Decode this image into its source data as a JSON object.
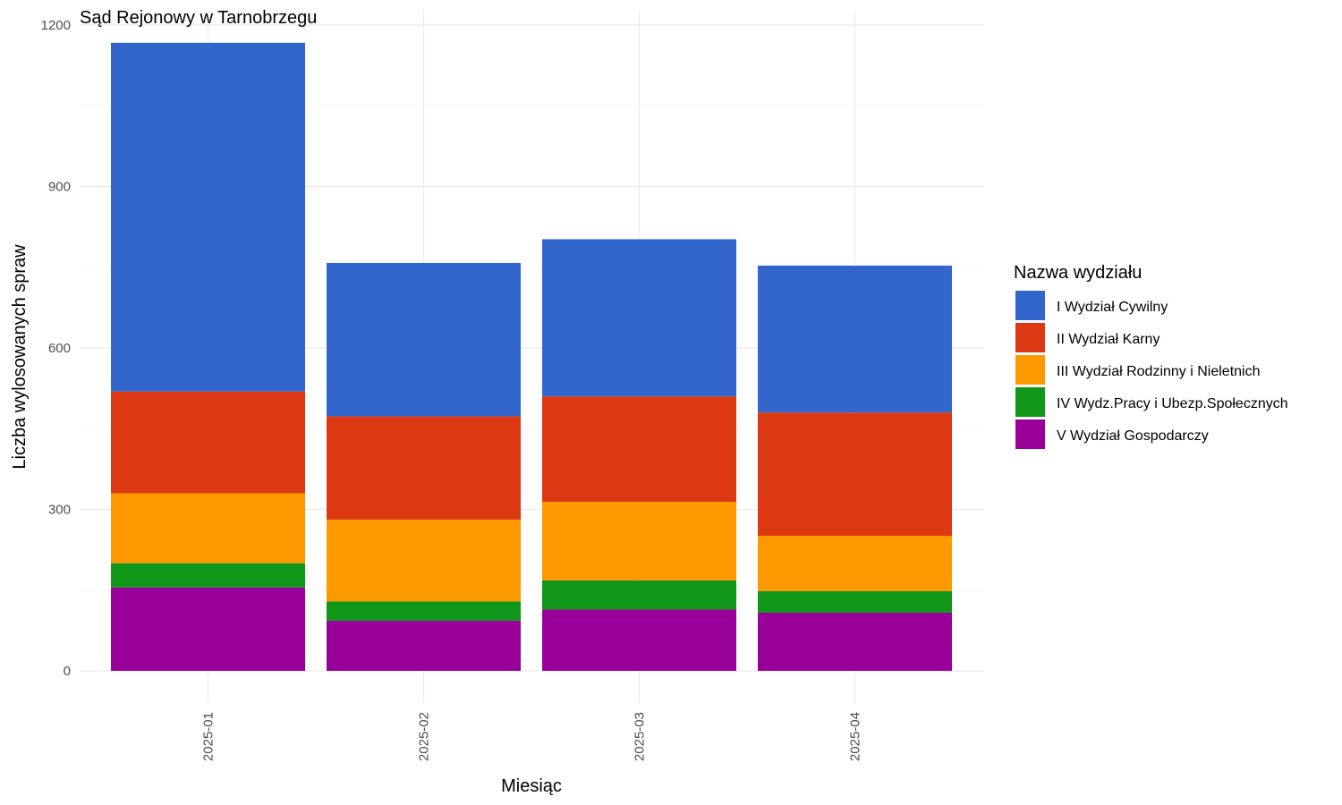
{
  "chart_data": {
    "type": "bar",
    "stacked": true,
    "title": "Sąd Rejonowy w Tarnobrzegu",
    "xlabel": "Miesiąc",
    "ylabel": "Liczba wylosowanych spraw",
    "ylim": [
      0,
      1200
    ],
    "yticks": [
      0,
      300,
      600,
      900,
      1200
    ],
    "grid": true,
    "legend_position": "right",
    "legend_title": "Nazwa wydziału",
    "categories": [
      "2025-01",
      "2025-02",
      "2025-03",
      "2025-04"
    ],
    "series": [
      {
        "name": "I Wydział Cywilny",
        "color": "#3366CC",
        "values": [
          648,
          285,
          292,
          273
        ]
      },
      {
        "name": "II Wydział Karny",
        "color": "#DC3912",
        "values": [
          189,
          192,
          196,
          229
        ]
      },
      {
        "name": "III Wydział Rodzinny i Nieletnich",
        "color": "#FF9900",
        "values": [
          130,
          152,
          146,
          103
        ]
      },
      {
        "name": "IV Wydz.Pracy i Ubezp.Społecznych",
        "color": "#109618",
        "values": [
          45,
          36,
          54,
          40
        ]
      },
      {
        "name": "V Wydział Gospodarczy",
        "color": "#990099",
        "values": [
          155,
          93,
          114,
          108
        ]
      }
    ]
  }
}
